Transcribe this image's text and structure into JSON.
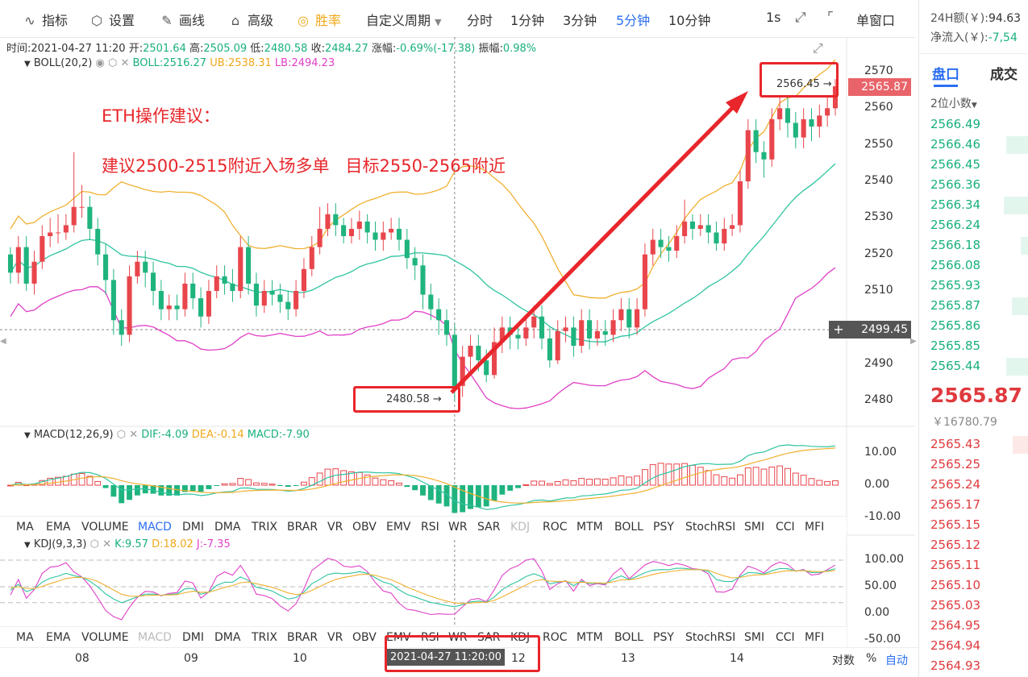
{
  "toolbar": {
    "items": [
      {
        "icon": "line-chart-icon",
        "glyph": "∿",
        "label": "指标"
      },
      {
        "icon": "gear-icon",
        "glyph": "⬡",
        "label": "设置"
      },
      {
        "icon": "pencil-icon",
        "glyph": "✎",
        "label": "画线"
      },
      {
        "icon": "briefcase-icon",
        "glyph": "⌂",
        "label": "高级"
      },
      {
        "icon": "coin-icon",
        "glyph": "◎",
        "label": "胜率"
      }
    ],
    "periods": [
      "自定义周期",
      "分时",
      "1分钟",
      "3分钟",
      "5分钟",
      "10分钟"
    ],
    "active_period": "5分钟",
    "interval": "1s",
    "window_mode": "单窗口"
  },
  "info_bar": {
    "time_label": "时间:",
    "time": "2021-04-27 11:20",
    "open_label": "开:",
    "open": "2501.64",
    "high_label": "高:",
    "high": "2505.09",
    "low_label": "低:",
    "low": "2480.58",
    "close_label": "收:",
    "close": "2484.27",
    "change_label": "涨幅:",
    "change": "-0.69%(-17.38)",
    "amp_label": "振幅:",
    "amp": "0.98%"
  },
  "boll_legend": {
    "name": "BOLL(20,2)",
    "boll": "BOLL:2516.27",
    "ub": "UB:2538.31",
    "lb": "LB:2494.23"
  },
  "macd_legend": {
    "name": "MACD(12,26,9)",
    "dif": "DIF:-4.09",
    "dea": "DEA:-0.14",
    "macd": "MACD:-7.90"
  },
  "kdj_legend": {
    "name": "KDJ(9,3,3)",
    "k": "K:9.57",
    "d": "D:18.02",
    "j": "J:-7.35"
  },
  "indicator_tabs": [
    "MA",
    "EMA",
    "VOLUME",
    "MACD",
    "DMI",
    "DMA",
    "TRIX",
    "BRAR",
    "VR",
    "OBV",
    "EMV",
    "RSI",
    "WR",
    "SAR",
    "KDJ",
    "ROC",
    "MTM",
    "BOLL",
    "PSY",
    "StochRSI",
    "SMI",
    "CCI",
    "MFI"
  ],
  "tabs_row1_active": "MACD",
  "tabs_row1_dim": "KDJ",
  "tabs_row2_dim": "MACD",
  "annotation": {
    "title": "ETH操作建议：",
    "advice": "建议2500-2515附近入场多单   目标2550-2565附近",
    "high_marker": "2566.45 →",
    "low_marker": "2480.58 →"
  },
  "crosshair": {
    "price": "2499.45",
    "time": "2021-04-27 11:20:00"
  },
  "last_price_tag": "2565.87",
  "bottom": {
    "dates": [
      "08",
      "09",
      "10",
      "12",
      "13",
      "14"
    ],
    "log_label": "对数",
    "pct_label": "%",
    "auto_label": "自动"
  },
  "side": {
    "vol_label": "24H额(￥):",
    "vol_value": "94.63",
    "flow_label": "净流入(￥):",
    "flow_value": "-7,54",
    "tab_book": "盘口",
    "tab_trades": "成交",
    "precision": "2位小数",
    "asks": [
      "2566.49",
      "2566.46",
      "2566.45",
      "2566.36",
      "2566.34",
      "2566.24",
      "2566.18",
      "2566.08",
      "2565.93",
      "2565.87",
      "2565.86",
      "2565.85",
      "2565.44"
    ],
    "last": "2565.87",
    "last_cny": "￥16780.79",
    "bids": [
      "2565.43",
      "2565.25",
      "2565.24",
      "2565.17",
      "2565.15",
      "2565.12",
      "2565.11",
      "2565.10",
      "2565.03",
      "2564.95",
      "2564.94",
      "2564.93"
    ]
  },
  "chart_data": {
    "type": "candlestick",
    "main_axis_ticks": [
      2570,
      2560,
      2550,
      2540,
      2530,
      2520,
      2510,
      2490,
      2480
    ],
    "main_ylim": [
      2476,
      2574
    ],
    "macd_axis_ticks": [
      "10.00",
      "0.00",
      "-10.00"
    ],
    "kdj_axis_ticks": [
      "100.00",
      "50.00",
      "0.00",
      "-50.00"
    ],
    "candles": [
      [
        2520,
        2515,
        2522,
        2512
      ],
      [
        2515,
        2522,
        2525,
        2512
      ],
      [
        2522,
        2512,
        2525,
        2510
      ],
      [
        2512,
        2518,
        2521,
        2509
      ],
      [
        2518,
        2525,
        2528,
        2516
      ],
      [
        2525,
        2526,
        2530,
        2522
      ],
      [
        2526,
        2526,
        2531,
        2523
      ],
      [
        2526,
        2528,
        2531,
        2524
      ],
      [
        2528,
        2533,
        2548,
        2526
      ],
      [
        2533,
        2533,
        2539,
        2530
      ],
      [
        2533,
        2527,
        2536,
        2524
      ],
      [
        2527,
        2520,
        2530,
        2517
      ],
      [
        2520,
        2513,
        2523,
        2509
      ],
      [
        2513,
        2502,
        2516,
        2498
      ],
      [
        2502,
        2498,
        2505,
        2495
      ],
      [
        2498,
        2514,
        2517,
        2496
      ],
      [
        2514,
        2518,
        2521,
        2512
      ],
      [
        2518,
        2515,
        2521,
        2511
      ],
      [
        2515,
        2510,
        2518,
        2506
      ],
      [
        2510,
        2505,
        2513,
        2502
      ],
      [
        2505,
        2506,
        2509,
        2502
      ],
      [
        2506,
        2505,
        2509,
        2502
      ],
      [
        2505,
        2512,
        2515,
        2503
      ],
      [
        2512,
        2508,
        2515,
        2505
      ],
      [
        2508,
        2503,
        2511,
        2500
      ],
      [
        2503,
        2510,
        2513,
        2501
      ],
      [
        2510,
        2514,
        2517,
        2508
      ],
      [
        2514,
        2512,
        2517,
        2509
      ],
      [
        2512,
        2510,
        2516,
        2507
      ],
      [
        2510,
        2522,
        2525,
        2508
      ],
      [
        2522,
        2512,
        2525,
        2509
      ],
      [
        2512,
        2506,
        2515,
        2503
      ],
      [
        2506,
        2510,
        2513,
        2504
      ],
      [
        2510,
        2509,
        2513,
        2506
      ],
      [
        2509,
        2507,
        2512,
        2504
      ],
      [
        2507,
        2505,
        2510,
        2502
      ],
      [
        2505,
        2510,
        2513,
        2503
      ],
      [
        2510,
        2516,
        2519,
        2508
      ],
      [
        2516,
        2522,
        2525,
        2514
      ],
      [
        2522,
        2527,
        2533,
        2520
      ],
      [
        2527,
        2531,
        2534,
        2525
      ],
      [
        2531,
        2528,
        2534,
        2525
      ],
      [
        2528,
        2525,
        2530,
        2523
      ],
      [
        2525,
        2527,
        2530,
        2523
      ],
      [
        2527,
        2529,
        2532,
        2524
      ],
      [
        2529,
        2526,
        2531,
        2523
      ],
      [
        2526,
        2524,
        2529,
        2521
      ],
      [
        2524,
        2526,
        2529,
        2521
      ],
      [
        2526,
        2527,
        2530,
        2524
      ],
      [
        2527,
        2524,
        2530,
        2521
      ],
      [
        2524,
        2519,
        2527,
        2516
      ],
      [
        2519,
        2517,
        2522,
        2513
      ],
      [
        2517,
        2509,
        2520,
        2505
      ],
      [
        2509,
        2505,
        2512,
        2502
      ],
      [
        2505,
        2502,
        2508,
        2498
      ],
      [
        2502,
        2498,
        2505,
        2495
      ],
      [
        2498,
        2484,
        2501,
        2480
      ],
      [
        2484,
        2492,
        2495,
        2481
      ],
      [
        2492,
        2495,
        2498,
        2487
      ],
      [
        2495,
        2491,
        2498,
        2488
      ],
      [
        2491,
        2487,
        2494,
        2485
      ],
      [
        2487,
        2496,
        2500,
        2486
      ],
      [
        2496,
        2500,
        2503,
        2493
      ],
      [
        2500,
        2498,
        2503,
        2494
      ],
      [
        2498,
        2497,
        2501,
        2494
      ],
      [
        2497,
        2500,
        2503,
        2495
      ],
      [
        2500,
        2503,
        2506,
        2497
      ],
      [
        2503,
        2497,
        2506,
        2494
      ],
      [
        2497,
        2491,
        2500,
        2489
      ],
      [
        2491,
        2499,
        2502,
        2490
      ],
      [
        2499,
        2500,
        2503,
        2496
      ],
      [
        2500,
        2495,
        2503,
        2492
      ],
      [
        2495,
        2502,
        2505,
        2493
      ],
      [
        2502,
        2497,
        2505,
        2494
      ],
      [
        2497,
        2499,
        2502,
        2495
      ],
      [
        2499,
        2498,
        2502,
        2495
      ],
      [
        2498,
        2502,
        2505,
        2496
      ],
      [
        2502,
        2505,
        2508,
        2499
      ],
      [
        2505,
        2500,
        2508,
        2497
      ],
      [
        2500,
        2505,
        2508,
        2498
      ],
      [
        2505,
        2520,
        2523,
        2503
      ],
      [
        2520,
        2524,
        2527,
        2517
      ],
      [
        2524,
        2522,
        2527,
        2519
      ],
      [
        2522,
        2521,
        2525,
        2518
      ],
      [
        2521,
        2525,
        2528,
        2519
      ],
      [
        2525,
        2529,
        2535,
        2523
      ],
      [
        2529,
        2527,
        2531,
        2524
      ],
      [
        2527,
        2528,
        2531,
        2525
      ],
      [
        2528,
        2526,
        2531,
        2523
      ],
      [
        2526,
        2523,
        2529,
        2521
      ],
      [
        2523,
        2527,
        2530,
        2521
      ],
      [
        2527,
        2528,
        2531,
        2525
      ],
      [
        2528,
        2540,
        2543,
        2526
      ],
      [
        2540,
        2554,
        2557,
        2538
      ],
      [
        2554,
        2548,
        2557,
        2545
      ],
      [
        2548,
        2546,
        2551,
        2541
      ],
      [
        2546,
        2557,
        2560,
        2544
      ],
      [
        2557,
        2560,
        2563,
        2554
      ],
      [
        2560,
        2556,
        2563,
        2552
      ],
      [
        2556,
        2552,
        2559,
        2549
      ],
      [
        2552,
        2557,
        2560,
        2549
      ],
      [
        2557,
        2555,
        2560,
        2551
      ],
      [
        2555,
        2558,
        2561,
        2552
      ],
      [
        2558,
        2560,
        2563,
        2555
      ],
      [
        2560,
        2566,
        2568,
        2558
      ]
    ]
  }
}
